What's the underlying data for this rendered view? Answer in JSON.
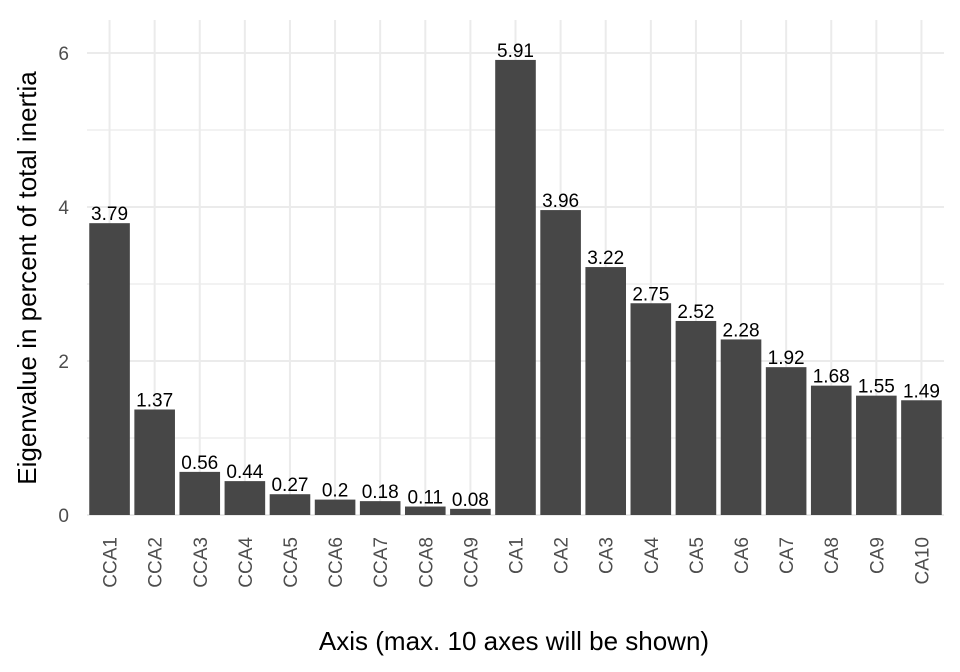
{
  "chart_data": {
    "type": "bar",
    "categories": [
      "CCA1",
      "CCA2",
      "CCA3",
      "CCA4",
      "CCA5",
      "CCA6",
      "CCA7",
      "CCA8",
      "CCA9",
      "CA1",
      "CA2",
      "CA3",
      "CA4",
      "CA5",
      "CA6",
      "CA7",
      "CA8",
      "CA9",
      "CA10"
    ],
    "values": [
      3.79,
      1.37,
      0.56,
      0.44,
      0.27,
      0.2,
      0.18,
      0.11,
      0.08,
      5.91,
      3.96,
      3.22,
      2.75,
      2.52,
      2.28,
      1.92,
      1.68,
      1.55,
      1.49
    ],
    "labels": [
      "3.79",
      "1.37",
      "0.56",
      "0.44",
      "0.27",
      "0.2",
      "0.18",
      "0.11",
      "0.08",
      "5.91",
      "3.96",
      "3.22",
      "2.75",
      "2.52",
      "2.28",
      "1.92",
      "1.68",
      "1.55",
      "1.49"
    ],
    "title": "",
    "xlabel": "Axis (max. 10 axes will be shown)",
    "ylabel": "Eigenvalue in percent of total inertia",
    "ylim": [
      0,
      6.2
    ],
    "yticks": [
      0,
      2,
      4,
      6
    ],
    "ytick_labels": [
      "0",
      "2",
      "4",
      "6"
    ],
    "grid": true,
    "bar_color": "#474747",
    "grid_color": "#ebebeb",
    "tick_text_color": "#4d4d4d"
  }
}
